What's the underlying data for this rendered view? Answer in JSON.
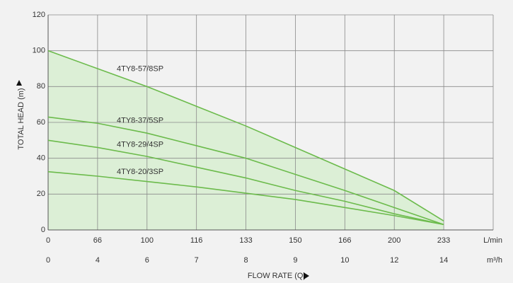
{
  "chart_data": {
    "type": "line",
    "x": [
      0,
      1,
      2,
      3,
      4,
      5,
      6,
      7,
      8
    ],
    "series": [
      {
        "name": "4TY8-57/8SP",
        "color": "#6cbb4c",
        "values": [
          100,
          90,
          80,
          69,
          58,
          46,
          34,
          22,
          5
        ]
      },
      {
        "name": "4TY8-37/5SP",
        "color": "#6cbb4c",
        "values": [
          63,
          59.5,
          54,
          47,
          40,
          31,
          22,
          12.5,
          3
        ]
      },
      {
        "name": "4TY8-29/4SP",
        "color": "#6cbb4c",
        "values": [
          50,
          46,
          41,
          35,
          29,
          22,
          16,
          9,
          3
        ]
      },
      {
        "name": "4TY8-20/3SP",
        "color": "#6cbb4c",
        "values": [
          32.5,
          30,
          27,
          24,
          20.5,
          17,
          12.5,
          8,
          3
        ]
      }
    ],
    "area_color": "#dcefd6",
    "xlim": [
      0,
      9
    ],
    "xticks": [
      {
        "value": 0,
        "label": "0"
      },
      {
        "value": 1,
        "label": "66"
      },
      {
        "value": 2,
        "label": "100"
      },
      {
        "value": 3,
        "label": "116"
      },
      {
        "value": 4,
        "label": "133"
      },
      {
        "value": 5,
        "label": "150"
      },
      {
        "value": 6,
        "label": "166"
      },
      {
        "value": 7,
        "label": "200"
      },
      {
        "value": 8,
        "label": "233"
      }
    ],
    "xunit": "L/min",
    "x2ticks": [
      {
        "value": 0,
        "label": "0"
      },
      {
        "value": 1,
        "label": "4"
      },
      {
        "value": 2,
        "label": "6"
      },
      {
        "value": 3,
        "label": "7"
      },
      {
        "value": 4,
        "label": "8"
      },
      {
        "value": 5,
        "label": "9"
      },
      {
        "value": 6,
        "label": "10"
      },
      {
        "value": 7,
        "label": "12"
      },
      {
        "value": 8,
        "label": "14"
      }
    ],
    "x2unit": "m³/h",
    "xlabel": "FLOW RATE (Q)",
    "ylabel": "TOTAL HEAD (m)",
    "ylim": [
      0,
      120
    ],
    "yticks": [
      0,
      20,
      40,
      60,
      80,
      100,
      120
    ],
    "grid": true
  }
}
